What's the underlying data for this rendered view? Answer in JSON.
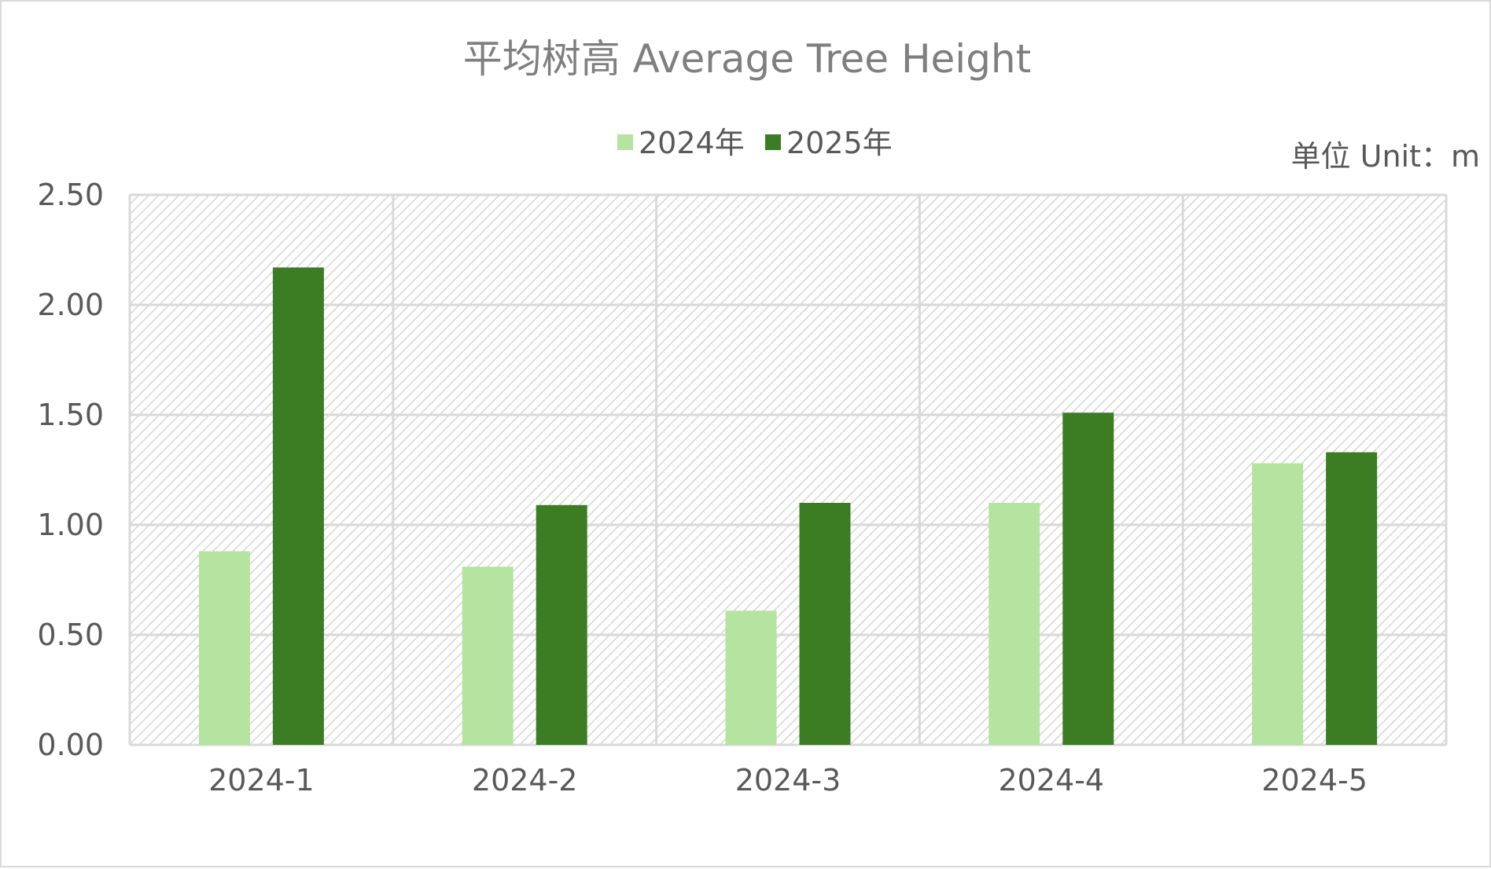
{
  "chart_data": {
    "type": "bar",
    "title": "平均树高 Average Tree Height",
    "unit_label": "单位 Unit：m",
    "categories": [
      "2024-1",
      "2024-2",
      "2024-3",
      "2024-4",
      "2024-5"
    ],
    "series": [
      {
        "name": "2024年",
        "color": "#b5e3a0",
        "values": [
          0.88,
          0.81,
          0.61,
          1.1,
          1.28
        ]
      },
      {
        "name": "2025年",
        "color": "#3c7d24",
        "values": [
          2.17,
          1.09,
          1.1,
          1.51,
          1.33
        ]
      }
    ],
    "ylim": [
      0,
      2.5
    ],
    "yticks": [
      "0.00",
      "0.50",
      "1.00",
      "1.50",
      "2.00",
      "2.50"
    ],
    "xlabel": "",
    "ylabel": "",
    "grid": true,
    "legend_position": "top-center",
    "plot_background": "diagonal-hatch"
  }
}
